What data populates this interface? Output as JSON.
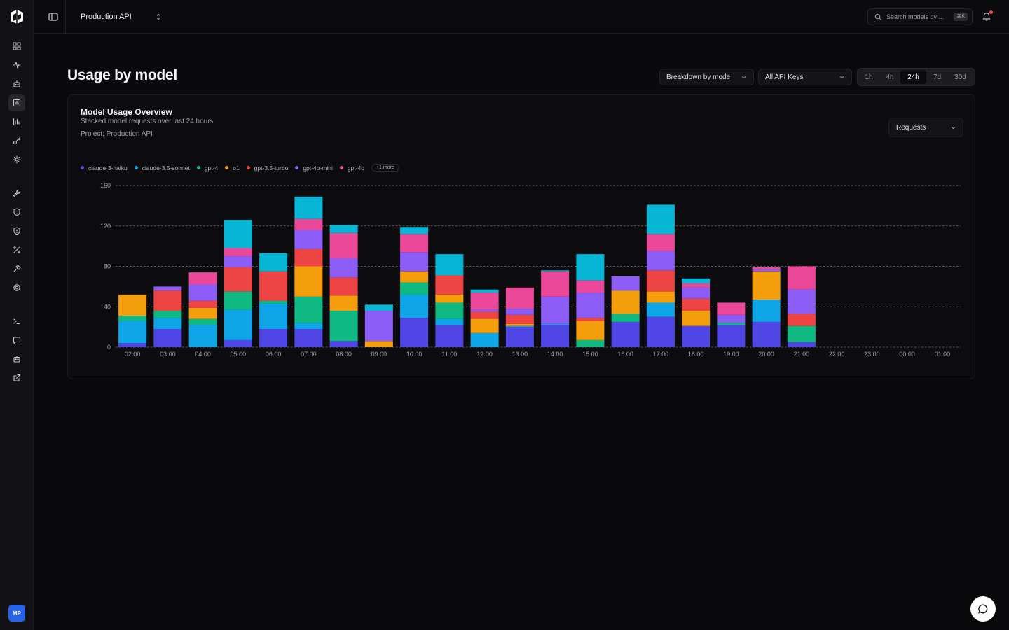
{
  "sidebar": {
    "nav": [
      {
        "icon": "dashboard-icon"
      },
      {
        "icon": "activity-icon"
      },
      {
        "icon": "bot-icon"
      },
      {
        "icon": "usage-chart-icon",
        "active": true
      },
      {
        "icon": "bar-chart-icon"
      },
      {
        "icon": "key-icon"
      },
      {
        "icon": "settings-icon"
      },
      {
        "icon": "wrench-icon"
      },
      {
        "icon": "shield-icon"
      },
      {
        "icon": "shield-alert-icon"
      },
      {
        "icon": "percent-icon"
      },
      {
        "icon": "hammer-icon"
      },
      {
        "icon": "gear-icon"
      },
      {
        "icon": "terminal-icon"
      },
      {
        "icon": "message-icon"
      },
      {
        "icon": "robot-icon"
      },
      {
        "icon": "external-link-icon"
      }
    ],
    "avatar_initials": "MP"
  },
  "topbar": {
    "project": "Production API",
    "search_placeholder": "Search models by ...",
    "search_shortcut": "⌘K"
  },
  "header": {
    "title": "Usage by model",
    "breakdown_select": "Breakdown by mode",
    "keys_select": "All API Keys",
    "ranges": [
      "1h",
      "4h",
      "24h",
      "7d",
      "30d"
    ],
    "active_range": "24h"
  },
  "card": {
    "title": "Model Usage Overview",
    "subtitle": "Stacked model requests over last 24 hours",
    "project_line": "Project: Production API",
    "metric_select": "Requests",
    "legend_more": "+1 more"
  },
  "colors": {
    "claude-3-haiku": "#4f46e5",
    "claude-3.5-sonnet": "#0ea5e9",
    "gpt-4": "#10b981",
    "o1": "#f59e0b",
    "gpt-3.5-turbo": "#ef4444",
    "gpt-4o-mini": "#8b5cf6",
    "gpt-4o": "#ec4899",
    "extra": "#06b6d4"
  },
  "chart_data": {
    "type": "bar",
    "stacked": true,
    "ylim": [
      0,
      160
    ],
    "yticks": [
      0,
      40,
      80,
      120,
      160
    ],
    "grid": true,
    "legend_position": "top-left",
    "categories": [
      "02:00",
      "03:00",
      "04:00",
      "05:00",
      "06:00",
      "07:00",
      "08:00",
      "09:00",
      "10:00",
      "11:00",
      "12:00",
      "13:00",
      "14:00",
      "15:00",
      "16:00",
      "17:00",
      "18:00",
      "19:00",
      "20:00",
      "21:00",
      "22:00",
      "23:00",
      "00:00",
      "01:00"
    ],
    "series": [
      {
        "name": "claude-3-haiku",
        "values": [
          4,
          18,
          0,
          7,
          18,
          18,
          6,
          0,
          29,
          22,
          0,
          20,
          22,
          0,
          25,
          30,
          21,
          22,
          25,
          5,
          0,
          0,
          0,
          0
        ]
      },
      {
        "name": "claude-3.5-sonnet",
        "values": [
          22,
          11,
          22,
          30,
          25,
          6,
          0,
          0,
          23,
          6,
          14,
          1,
          1,
          0,
          0,
          14,
          0,
          0,
          22,
          0,
          0,
          0,
          0,
          0
        ]
      },
      {
        "name": "gpt-4",
        "values": [
          5,
          7,
          6,
          18,
          3,
          26,
          30,
          0,
          12,
          16,
          0,
          0,
          0,
          7,
          8,
          0,
          0,
          2,
          0,
          16,
          0,
          0,
          0,
          0
        ]
      },
      {
        "name": "o1",
        "values": [
          21,
          0,
          11,
          0,
          0,
          30,
          15,
          6,
          11,
          8,
          14,
          2,
          0,
          19,
          23,
          11,
          15,
          0,
          28,
          0,
          0,
          0,
          0,
          0
        ]
      },
      {
        "name": "gpt-3.5-turbo",
        "values": [
          0,
          20,
          7,
          24,
          29,
          17,
          18,
          0,
          0,
          19,
          7,
          9,
          0,
          3,
          0,
          21,
          12,
          0,
          0,
          12,
          0,
          0,
          0,
          0
        ]
      },
      {
        "name": "gpt-4o-mini",
        "values": [
          0,
          4,
          16,
          11,
          0,
          19,
          19,
          30,
          19,
          0,
          2,
          6,
          27,
          25,
          14,
          19,
          11,
          8,
          2,
          24,
          0,
          0,
          0,
          0
        ]
      },
      {
        "name": "gpt-4o",
        "values": [
          0,
          0,
          12,
          8,
          0,
          11,
          25,
          0,
          18,
          0,
          17,
          21,
          25,
          12,
          0,
          17,
          4,
          12,
          2,
          23,
          0,
          0,
          0,
          0
        ]
      },
      {
        "name": "",
        "values": [
          0,
          0,
          0,
          28,
          18,
          22,
          8,
          6,
          7,
          21,
          3,
          0,
          1,
          26,
          0,
          29,
          5,
          0,
          0,
          0,
          0,
          0,
          0,
          0
        ]
      }
    ]
  }
}
